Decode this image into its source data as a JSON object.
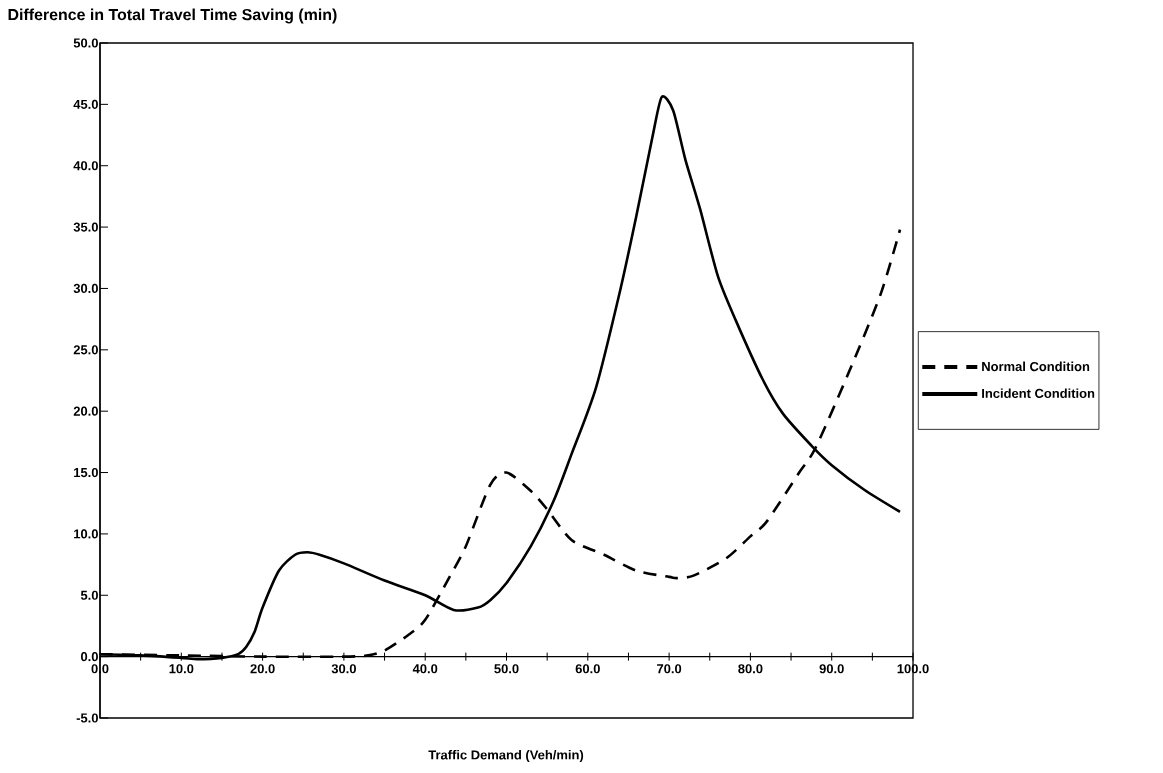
{
  "chart_data": {
    "type": "line",
    "title": "Difference in Total Travel Time Saving (min)",
    "xlabel": "Traffic Demand (Veh/min)",
    "xlim": [
      0,
      100
    ],
    "ylim": [
      -5,
      50
    ],
    "xticks": [
      {
        "value": 0,
        "label": "0.0"
      },
      {
        "value": 5,
        "label": null
      },
      {
        "value": 10,
        "label": "10.0"
      },
      {
        "value": 15,
        "label": null
      },
      {
        "value": 20,
        "label": "20.0"
      },
      {
        "value": 25,
        "label": null
      },
      {
        "value": 30,
        "label": "30.0"
      },
      {
        "value": 35,
        "label": null
      },
      {
        "value": 40,
        "label": "40.0"
      },
      {
        "value": 45,
        "label": null
      },
      {
        "value": 50,
        "label": "50.0"
      },
      {
        "value": 55,
        "label": null
      },
      {
        "value": 60,
        "label": "60.0"
      },
      {
        "value": 65,
        "label": null
      },
      {
        "value": 70,
        "label": "70.0"
      },
      {
        "value": 75,
        "label": null
      },
      {
        "value": 80,
        "label": "80.0"
      },
      {
        "value": 85,
        "label": null
      },
      {
        "value": 90,
        "label": "90.0"
      },
      {
        "value": 95,
        "label": null
      },
      {
        "value": 100,
        "label": "100.0"
      }
    ],
    "yticks": [
      {
        "value": -5,
        "label": "-5.0"
      },
      {
        "value": 0,
        "label": "0.0"
      },
      {
        "value": 5,
        "label": "5.0"
      },
      {
        "value": 10,
        "label": "10.0"
      },
      {
        "value": 15,
        "label": "15.0"
      },
      {
        "value": 20,
        "label": "20.0"
      },
      {
        "value": 25,
        "label": "25.0"
      },
      {
        "value": 30,
        "label": "30.0"
      },
      {
        "value": 35,
        "label": "35.0"
      },
      {
        "value": 40,
        "label": "40.0"
      },
      {
        "value": 45,
        "label": "45.0"
      },
      {
        "value": 50,
        "label": "50.0"
      }
    ],
    "legend": "right",
    "series": [
      {
        "name": "Normal Condition",
        "color": "#000000",
        "line_style": "dashed",
        "x": [
          0,
          10,
          20,
          30,
          33,
          35,
          38,
          40,
          43,
          45,
          48,
          50,
          53,
          55,
          58,
          62,
          66,
          70,
          71,
          73,
          77,
          80,
          82,
          86,
          88,
          92,
          96,
          98.4
        ],
        "values": [
          0.2,
          0.1,
          0.0,
          0.0,
          0.1,
          0.5,
          1.8,
          3.0,
          6.5,
          9.0,
          14.0,
          15.0,
          13.5,
          12.0,
          9.5,
          8.3,
          7.0,
          6.5,
          6.4,
          6.6,
          8.0,
          9.8,
          11.0,
          15.0,
          17.0,
          23.0,
          29.5,
          34.8
        ]
      },
      {
        "name": "Incident Condition",
        "color": "#000000",
        "line_style": "solid",
        "x": [
          0,
          5,
          10,
          12,
          15,
          17,
          18,
          19,
          20,
          22,
          24,
          25.5,
          27,
          30,
          35,
          40,
          43.5,
          46.5,
          48,
          50,
          53,
          55.8,
          58,
          61,
          64,
          66,
          68,
          69.1,
          70.5,
          72,
          73.8,
          76,
          78.2,
          81.5,
          84,
          87.5,
          90,
          94,
          98.4
        ],
        "values": [
          0.2,
          0.1,
          -0.1,
          -0.2,
          -0.1,
          0.2,
          0.8,
          2.0,
          4.0,
          7.0,
          8.3,
          8.5,
          8.3,
          7.6,
          6.2,
          5.0,
          3.8,
          4.0,
          4.6,
          6.0,
          9.0,
          12.7,
          16.5,
          21.9,
          29.9,
          36.0,
          42.5,
          45.6,
          44.5,
          40.5,
          36.5,
          31.0,
          27.4,
          22.6,
          19.8,
          17.2,
          15.6,
          13.6,
          11.8
        ]
      }
    ]
  }
}
